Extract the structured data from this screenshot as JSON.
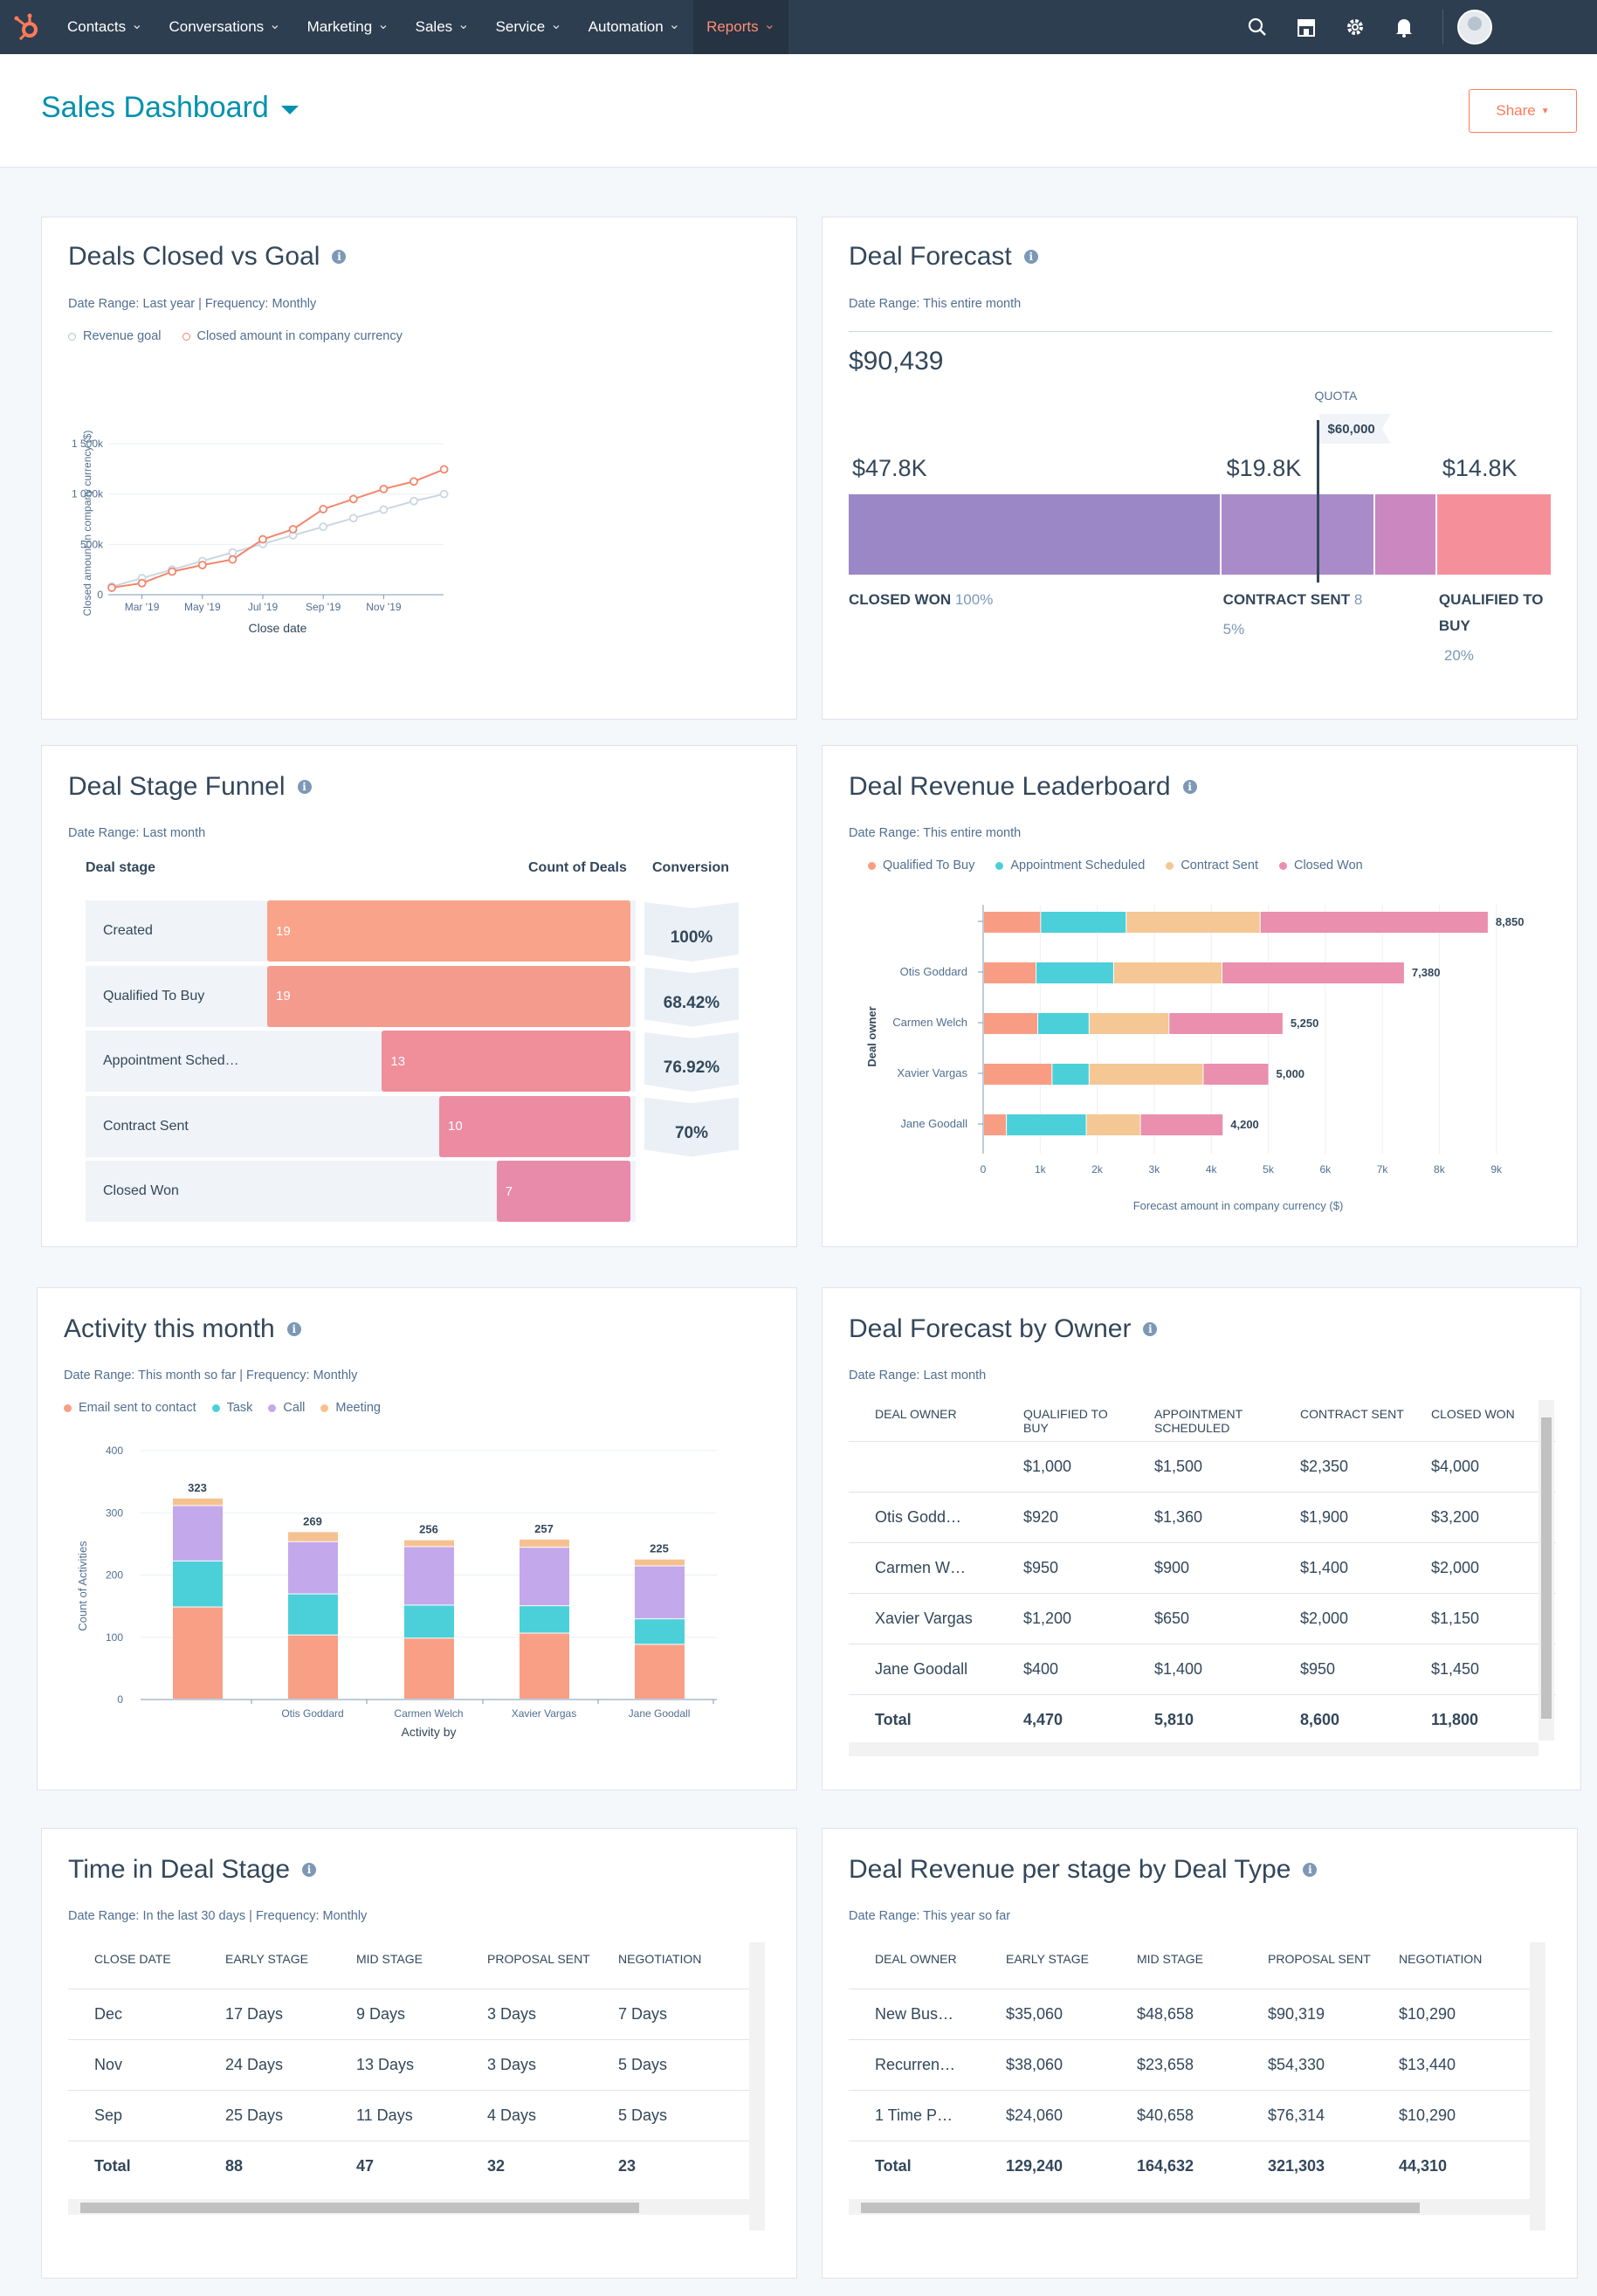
{
  "nav": {
    "items": [
      {
        "label": "Contacts",
        "active": false
      },
      {
        "label": "Conversations",
        "active": false
      },
      {
        "label": "Marketing",
        "active": false
      },
      {
        "label": "Sales",
        "active": false
      },
      {
        "label": "Service",
        "active": false
      },
      {
        "label": "Automation",
        "active": false
      },
      {
        "label": "Reports",
        "active": true
      }
    ],
    "icons": [
      "search-icon",
      "marketplace-icon",
      "settings-icon",
      "notifications-icon"
    ]
  },
  "header": {
    "title": "Sales Dashboard",
    "share_label": "Share"
  },
  "colors": {
    "accent": "#ff7a59",
    "teal": "#0091ae",
    "nav": "#2d3e50",
    "closed_won": "#9b87c6",
    "contract_sent": "#a98bc9",
    "qualified": "#f5909a",
    "funnel": [
      "#f8a38a",
      "#f59b8e",
      "#f08e9a",
      "#ec8ba1",
      "#e88aa9"
    ],
    "lb_qualified": "#f89d84",
    "lb_appt": "#4bcfd9",
    "lb_contract": "#f5c795",
    "lb_closed": "#ea8fae",
    "act_email": "#f99f86",
    "act_task": "#4bd0da",
    "act_call": "#c3a8eb",
    "act_meeting": "#f6c190"
  },
  "deals_closed": {
    "title": "Deals Closed vs Goal",
    "date_range": "Date Range: Last year | Frequency: Monthly",
    "chart_data": {
      "type": "line",
      "x": [
        "Feb '19",
        "Mar '19",
        "Apr '19",
        "May '19",
        "Jun '19",
        "Jul '19",
        "Aug '19",
        "Sep '19",
        "Oct '19",
        "Nov '19",
        "Dec '19",
        "Jan '20"
      ],
      "xticks": [
        "Mar '19",
        "May '19",
        "Jul '19",
        "Sep '19",
        "Nov '19"
      ],
      "series": [
        {
          "name": "Revenue goal",
          "values": [
            80000,
            165000,
            250000,
            335000,
            420000,
            505000,
            590000,
            675000,
            760000,
            845000,
            930000,
            1000000
          ]
        },
        {
          "name": "Closed amount in company currency",
          "values": [
            70000,
            115000,
            230000,
            295000,
            350000,
            550000,
            650000,
            850000,
            950000,
            1050000,
            1125000,
            1245000
          ]
        }
      ],
      "xlabel": "Close date",
      "ylabel": "Closed amount in company currency ($)",
      "ylim": [
        0,
        1500000
      ],
      "yticks": [
        {
          "v": 0,
          "label": "0"
        },
        {
          "v": 500000,
          "label": "500k"
        },
        {
          "v": 1000000,
          "label": "1 000k"
        },
        {
          "v": 1500000,
          "label": "1 500k"
        }
      ]
    }
  },
  "deal_forecast": {
    "title": "Deal Forecast",
    "date_range": "Date Range: This entire month",
    "total": "$90,439",
    "quota_label": "QUOTA",
    "quota_value": "$60,000",
    "quota": 60000,
    "segments": [
      {
        "value_label": "$47.8K",
        "value": 47800,
        "stage": "CLOSED WON",
        "pct": "100%",
        "pct2": ""
      },
      {
        "value_label": "$19.8K",
        "value": 19800,
        "stage": "CONTRACT SENT",
        "pct": "8",
        "pct2": "5%"
      },
      {
        "value_label": "",
        "value": 7900,
        "stage": "",
        "pct": "",
        "pct2": ""
      },
      {
        "value_label": "$14.8K",
        "value": 14800,
        "stage": "QUALIFIED TO BUY",
        "pct": "",
        "pct2": "20%"
      }
    ]
  },
  "funnel": {
    "title": "Deal Stage Funnel",
    "date_range": "Date Range: Last month",
    "col_stage": "Deal stage",
    "col_count": "Count of Deals",
    "col_conversion": "Conversion",
    "rows": [
      {
        "stage": "Created",
        "count": 19
      },
      {
        "stage": "Qualified To Buy",
        "count": 19
      },
      {
        "stage": "Appointment Sched…",
        "count": 13
      },
      {
        "stage": "Contract Sent",
        "count": 10
      },
      {
        "stage": "Closed Won",
        "count": 7
      }
    ],
    "max": 19,
    "conversions": [
      "100%",
      "68.42%",
      "76.92%",
      "70%"
    ]
  },
  "leaderboard": {
    "title": "Deal Revenue Leaderboard",
    "date_range": "Date Range: This entire month",
    "chart_data": {
      "type": "bar",
      "orientation": "horizontal",
      "stacked": true,
      "categories": [
        "",
        "Otis Goddard",
        "Carmen Welch",
        "Xavier Vargas",
        "Jane Goodall"
      ],
      "series": [
        {
          "name": "Qualified To Buy",
          "values": [
            1000,
            920,
            950,
            1200,
            400
          ]
        },
        {
          "name": "Appointment Scheduled",
          "values": [
            1500,
            1360,
            900,
            650,
            1400
          ]
        },
        {
          "name": "Contract Sent",
          "values": [
            2350,
            1900,
            1400,
            2000,
            950
          ]
        },
        {
          "name": "Closed Won",
          "values": [
            4000,
            3200,
            2000,
            1150,
            1450
          ]
        }
      ],
      "totals": [
        "8,850",
        "7,380",
        "5,250",
        "5,000",
        "4,200"
      ],
      "xlabel": "Forecast amount in company currency ($)",
      "ylabel": "Deal owner",
      "xlim": [
        0,
        9000
      ],
      "xticks": [
        "0",
        "1k",
        "2k",
        "3k",
        "4k",
        "5k",
        "6k",
        "7k",
        "8k",
        "9k"
      ]
    }
  },
  "activity": {
    "title": "Activity this month",
    "date_range": "Date Range: This month so far | Frequency: Monthly",
    "chart_data": {
      "type": "bar",
      "stacked": true,
      "categories": [
        "",
        "Otis Goddard",
        "Carmen Welch",
        "Xavier Vargas",
        "Jane Goodall"
      ],
      "series": [
        {
          "name": "Email sent to contact",
          "values": [
            148,
            103,
            98,
            106,
            88
          ]
        },
        {
          "name": "Task",
          "values": [
            74,
            66,
            53,
            44,
            41
          ]
        },
        {
          "name": "Call",
          "values": [
            89,
            84,
            94,
            94,
            85
          ]
        },
        {
          "name": "Meeting",
          "values": [
            12,
            16,
            11,
            13,
            11
          ]
        }
      ],
      "totals": [
        "323",
        "269",
        "256",
        "257",
        "225"
      ],
      "xlabel": "Activity by",
      "ylabel": "Count of Activities",
      "ylim": [
        0,
        400
      ],
      "yticks": [
        "0",
        "100",
        "200",
        "300",
        "400"
      ]
    }
  },
  "forecast_owner": {
    "title": "Deal Forecast by Owner",
    "date_range": "Date Range: Last month",
    "headers": [
      "DEAL OWNER",
      "QUALIFIED TO BUY",
      "APPOINTMENT SCHEDULED",
      "CONTRACT SENT",
      "CLOSED WON"
    ],
    "rows": [
      [
        "",
        "$1,000",
        "$1,500",
        "$2,350",
        "$4,000"
      ],
      [
        "Otis Godd…",
        "$920",
        "$1,360",
        "$1,900",
        "$3,200"
      ],
      [
        "Carmen W…",
        "$950",
        "$900",
        "$1,400",
        "$2,000"
      ],
      [
        "Xavier Vargas",
        "$1,200",
        "$650",
        "$2,000",
        "$1,150"
      ],
      [
        "Jane Goodall",
        "$400",
        "$1,400",
        "$950",
        "$1,450"
      ]
    ],
    "total": [
      "Total",
      "4,470",
      "5,810",
      "8,600",
      "11,800"
    ]
  },
  "time_stage": {
    "title": "Time in Deal Stage",
    "date_range": "Date Range: In the last 30 days | Frequency: Monthly",
    "headers": [
      "CLOSE DATE",
      "EARLY STAGE",
      "MID STAGE",
      "PROPOSAL SENT",
      "NEGOTIATION"
    ],
    "rows": [
      [
        "Dec",
        "17 Days",
        "9 Days",
        "3 Days",
        "7 Days"
      ],
      [
        "Nov",
        "24 Days",
        "13 Days",
        "3 Days",
        "5 Days"
      ],
      [
        "Sep",
        "25 Days",
        "11 Days",
        "4 Days",
        "5 Days"
      ]
    ],
    "total": [
      "Total",
      "88",
      "47",
      "32",
      "23"
    ]
  },
  "revenue_type": {
    "title": "Deal Revenue per stage by Deal Type",
    "date_range": "Date Range: This year so far",
    "headers": [
      "DEAL OWNER",
      "EARLY STAGE",
      "MID STAGE",
      "PROPOSAL SENT",
      "NEGOTIATION"
    ],
    "rows": [
      [
        "New Bus…",
        "$35,060",
        "$48,658",
        "$90,319",
        "$10,290"
      ],
      [
        "Recurren…",
        "$38,060",
        "$23,658",
        "$54,330",
        "$13,440"
      ],
      [
        "1 Time P…",
        "$24,060",
        "$40,658",
        "$76,314",
        "$10,290"
      ]
    ],
    "total": [
      "Total",
      "129,240",
      "164,632",
      "321,303",
      "44,310"
    ]
  }
}
